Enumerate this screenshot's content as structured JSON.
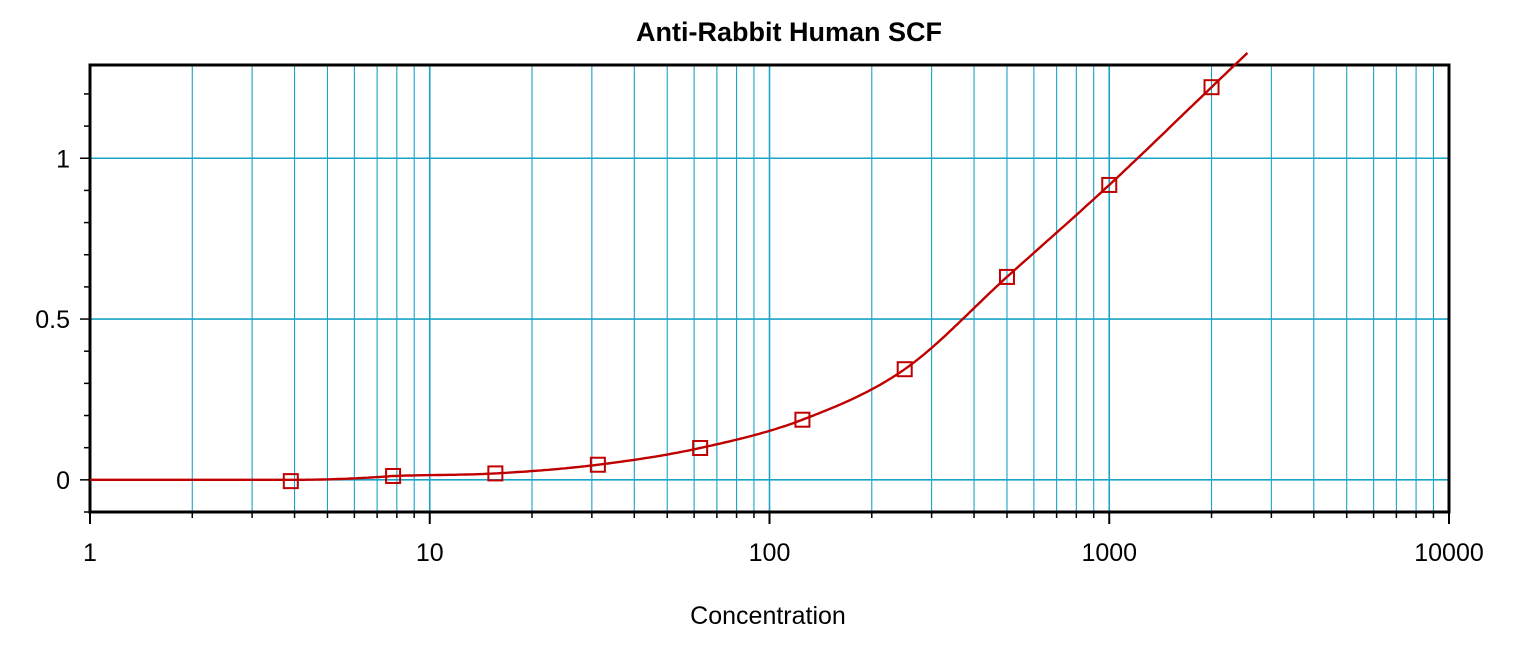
{
  "chart_data": {
    "type": "scatter",
    "title": "Anti-Rabbit Human SCF",
    "xlabel": "Concentration",
    "ylabel": "",
    "x_scale": "log",
    "xlim": [
      1,
      10000
    ],
    "ylim": [
      -0.1,
      1.29
    ],
    "x_ticks": [
      1,
      10,
      100,
      1000,
      10000
    ],
    "x_tick_labels": [
      "1",
      "10",
      "100",
      "1000",
      "10000"
    ],
    "y_ticks": [
      0,
      0.5,
      1
    ],
    "y_tick_labels": [
      "0",
      "0.5",
      "1"
    ],
    "grid": true,
    "series": [
      {
        "marker": "square",
        "x": [
          3.9,
          7.8,
          15.6,
          31.25,
          62.5,
          125,
          250,
          500,
          1000,
          2000
        ],
        "y": [
          -0.004,
          0.012,
          0.02,
          0.047,
          0.099,
          0.187,
          0.344,
          0.631,
          0.917,
          1.221
        ]
      }
    ],
    "fit_curve": {
      "type": "4PL",
      "x_end": 2550
    },
    "colors": {
      "grid": "#1aa3c7",
      "series": "#c00000",
      "axis": "#000000"
    }
  }
}
